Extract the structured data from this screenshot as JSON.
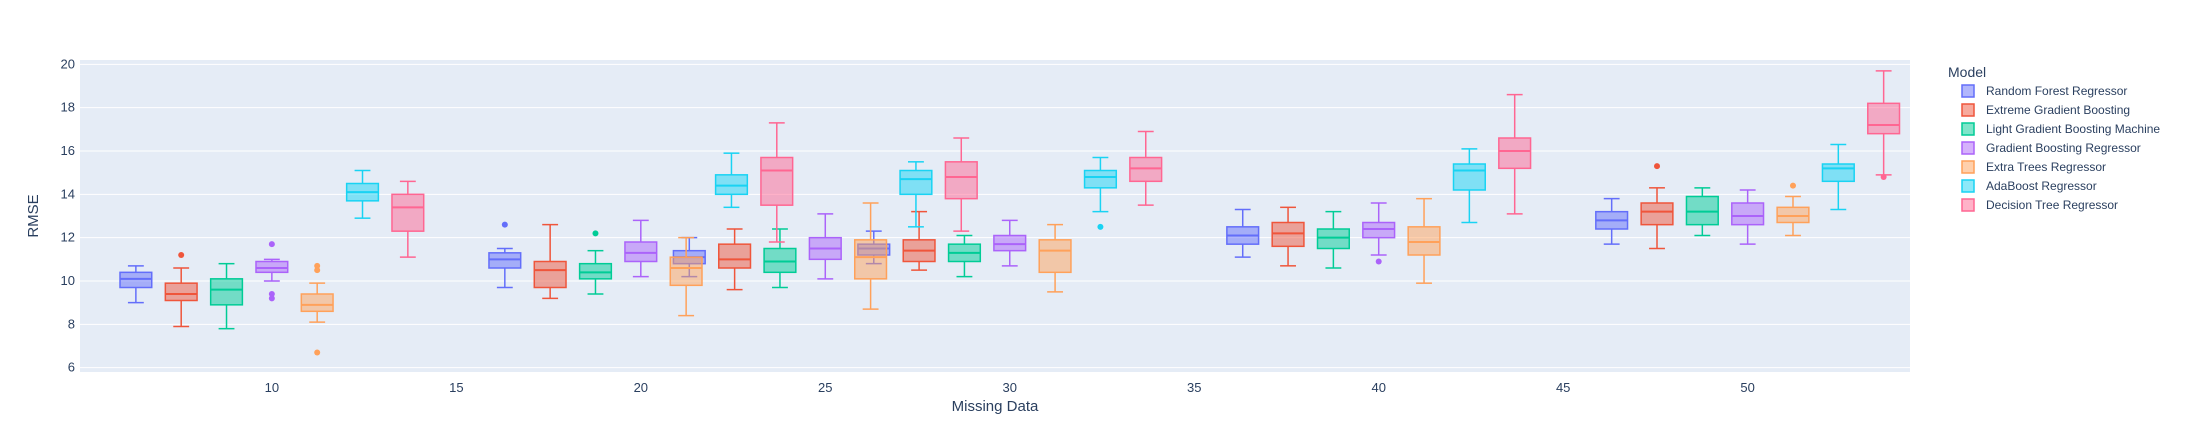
{
  "chart_data": {
    "type": "box",
    "xlabel": "Missing Data",
    "ylabel": "RMSE",
    "xlim": [
      4.8,
      54.4
    ],
    "ylim": [
      5.8,
      20.2
    ],
    "x_ticks": [
      10,
      15,
      20,
      25,
      30,
      35,
      40,
      45,
      50
    ],
    "y_ticks": [
      6,
      8,
      10,
      12,
      14,
      16,
      18,
      20
    ],
    "grid": true,
    "legend_title": "Model",
    "legend_position": "right",
    "plot_background": "#e5ecf6",
    "categories": [
      10,
      20,
      25,
      30,
      40,
      50
    ],
    "series": [
      {
        "name": "Random Forest Regressor",
        "color": "#636efa",
        "boxes": [
          {
            "x": 10,
            "min": 9.0,
            "q1": 9.7,
            "median": 10.1,
            "q3": 10.4,
            "max": 10.7,
            "outliers": []
          },
          {
            "x": 20,
            "min": 9.7,
            "q1": 10.6,
            "median": 11.0,
            "q3": 11.3,
            "max": 11.5,
            "outliers": [
              12.6
            ]
          },
          {
            "x": 25,
            "min": 10.2,
            "q1": 10.8,
            "median": 11.1,
            "q3": 11.4,
            "max": 12.0,
            "outliers": []
          },
          {
            "x": 30,
            "min": 10.8,
            "q1": 11.2,
            "median": 11.5,
            "q3": 11.7,
            "max": 12.3,
            "outliers": []
          },
          {
            "x": 40,
            "min": 11.1,
            "q1": 11.7,
            "median": 12.1,
            "q3": 12.5,
            "max": 13.3,
            "outliers": []
          },
          {
            "x": 50,
            "min": 11.7,
            "q1": 12.4,
            "median": 12.8,
            "q3": 13.2,
            "max": 13.8,
            "outliers": []
          }
        ]
      },
      {
        "name": "Extreme Gradient Boosting",
        "color": "#ef553b",
        "boxes": [
          {
            "x": 10,
            "min": 7.9,
            "q1": 9.1,
            "median": 9.4,
            "q3": 9.9,
            "max": 10.6,
            "outliers": [
              11.2
            ]
          },
          {
            "x": 20,
            "min": 9.2,
            "q1": 9.7,
            "median": 10.5,
            "q3": 10.9,
            "max": 12.6,
            "outliers": []
          },
          {
            "x": 25,
            "min": 9.6,
            "q1": 10.6,
            "median": 11.0,
            "q3": 11.7,
            "max": 12.4,
            "outliers": []
          },
          {
            "x": 30,
            "min": 10.5,
            "q1": 10.9,
            "median": 11.4,
            "q3": 11.9,
            "max": 13.2,
            "outliers": []
          },
          {
            "x": 40,
            "min": 10.7,
            "q1": 11.6,
            "median": 12.2,
            "q3": 12.7,
            "max": 13.4,
            "outliers": []
          },
          {
            "x": 50,
            "min": 11.5,
            "q1": 12.6,
            "median": 13.2,
            "q3": 13.6,
            "max": 14.3,
            "outliers": [
              15.3
            ]
          }
        ]
      },
      {
        "name": "Light Gradient Boosting Machine",
        "color": "#00cc96",
        "boxes": [
          {
            "x": 10,
            "min": 7.8,
            "q1": 8.9,
            "median": 9.6,
            "q3": 10.1,
            "max": 10.8,
            "outliers": []
          },
          {
            "x": 20,
            "min": 9.4,
            "q1": 10.1,
            "median": 10.4,
            "q3": 10.8,
            "max": 11.4,
            "outliers": [
              12.2
            ]
          },
          {
            "x": 25,
            "min": 9.7,
            "q1": 10.4,
            "median": 10.9,
            "q3": 11.5,
            "max": 12.4,
            "outliers": []
          },
          {
            "x": 30,
            "min": 10.2,
            "q1": 10.9,
            "median": 11.3,
            "q3": 11.7,
            "max": 12.1,
            "outliers": []
          },
          {
            "x": 40,
            "min": 10.6,
            "q1": 11.5,
            "median": 12.0,
            "q3": 12.4,
            "max": 13.2,
            "outliers": []
          },
          {
            "x": 50,
            "min": 12.1,
            "q1": 12.6,
            "median": 13.2,
            "q3": 13.9,
            "max": 14.3,
            "outliers": []
          }
        ]
      },
      {
        "name": "Gradient Boosting Regressor",
        "color": "#ab63fa",
        "boxes": [
          {
            "x": 10,
            "min": 10.0,
            "q1": 10.4,
            "median": 10.6,
            "q3": 10.9,
            "max": 11.0,
            "outliers": [
              9.2,
              9.4,
              11.7
            ]
          },
          {
            "x": 20,
            "min": 10.2,
            "q1": 10.9,
            "median": 11.3,
            "q3": 11.8,
            "max": 12.8,
            "outliers": []
          },
          {
            "x": 25,
            "min": 10.1,
            "q1": 11.0,
            "median": 11.5,
            "q3": 12.0,
            "max": 13.1,
            "outliers": []
          },
          {
            "x": 30,
            "min": 10.7,
            "q1": 11.4,
            "median": 11.7,
            "q3": 12.1,
            "max": 12.8,
            "outliers": []
          },
          {
            "x": 40,
            "min": 11.2,
            "q1": 12.0,
            "median": 12.4,
            "q3": 12.7,
            "max": 13.6,
            "outliers": [
              10.9
            ]
          },
          {
            "x": 50,
            "min": 11.7,
            "q1": 12.6,
            "median": 13.0,
            "q3": 13.6,
            "max": 14.2,
            "outliers": []
          }
        ]
      },
      {
        "name": "Extra Trees Regressor",
        "color": "#ffa15a",
        "boxes": [
          {
            "x": 10,
            "min": 8.1,
            "q1": 8.6,
            "median": 8.9,
            "q3": 9.4,
            "max": 9.9,
            "outliers": [
              10.5,
              10.7,
              6.7
            ]
          },
          {
            "x": 20,
            "min": 8.4,
            "q1": 9.8,
            "median": 10.6,
            "q3": 11.1,
            "max": 12.0,
            "outliers": []
          },
          {
            "x": 25,
            "min": 8.7,
            "q1": 10.1,
            "median": 11.1,
            "q3": 11.9,
            "max": 13.6,
            "outliers": []
          },
          {
            "x": 30,
            "min": 9.5,
            "q1": 10.4,
            "median": 11.4,
            "q3": 11.9,
            "max": 12.6,
            "outliers": []
          },
          {
            "x": 40,
            "min": 9.9,
            "q1": 11.2,
            "median": 11.8,
            "q3": 12.5,
            "max": 13.8,
            "outliers": []
          },
          {
            "x": 50,
            "min": 12.1,
            "q1": 12.7,
            "median": 13.0,
            "q3": 13.4,
            "max": 13.9,
            "outliers": [
              14.4
            ]
          }
        ]
      },
      {
        "name": "AdaBoost Regressor",
        "color": "#19d3f3",
        "boxes": [
          {
            "x": 10,
            "min": 12.9,
            "q1": 13.7,
            "median": 14.1,
            "q3": 14.5,
            "max": 15.1,
            "outliers": []
          },
          {
            "x": 20,
            "min": 13.4,
            "q1": 14.0,
            "median": 14.4,
            "q3": 14.9,
            "max": 15.9,
            "outliers": []
          },
          {
            "x": 25,
            "min": 12.5,
            "q1": 14.0,
            "median": 14.7,
            "q3": 15.1,
            "max": 15.5,
            "outliers": []
          },
          {
            "x": 30,
            "min": 13.2,
            "q1": 14.3,
            "median": 14.8,
            "q3": 15.1,
            "max": 15.7,
            "outliers": [
              12.5
            ]
          },
          {
            "x": 40,
            "min": 12.7,
            "q1": 14.2,
            "median": 15.1,
            "q3": 15.4,
            "max": 16.1,
            "outliers": []
          },
          {
            "x": 50,
            "min": 13.3,
            "q1": 14.6,
            "median": 15.2,
            "q3": 15.4,
            "max": 16.3,
            "outliers": []
          }
        ]
      },
      {
        "name": "Decision Tree Regressor",
        "color": "#ff6692",
        "boxes": [
          {
            "x": 10,
            "min": 11.1,
            "q1": 12.3,
            "median": 13.4,
            "q3": 14.0,
            "max": 14.6,
            "outliers": []
          },
          {
            "x": 20,
            "min": 11.8,
            "q1": 13.5,
            "median": 15.1,
            "q3": 15.7,
            "max": 17.3,
            "outliers": []
          },
          {
            "x": 25,
            "min": 12.3,
            "q1": 13.8,
            "median": 14.8,
            "q3": 15.5,
            "max": 16.6,
            "outliers": []
          },
          {
            "x": 30,
            "min": 13.5,
            "q1": 14.6,
            "median": 15.2,
            "q3": 15.7,
            "max": 16.9,
            "outliers": []
          },
          {
            "x": 40,
            "min": 13.1,
            "q1": 15.2,
            "median": 16.0,
            "q3": 16.6,
            "max": 18.6,
            "outliers": []
          },
          {
            "x": 50,
            "min": 14.9,
            "q1": 16.8,
            "median": 17.2,
            "q3": 18.2,
            "max": 19.7,
            "outliers": [
              14.8
            ]
          }
        ]
      }
    ]
  }
}
